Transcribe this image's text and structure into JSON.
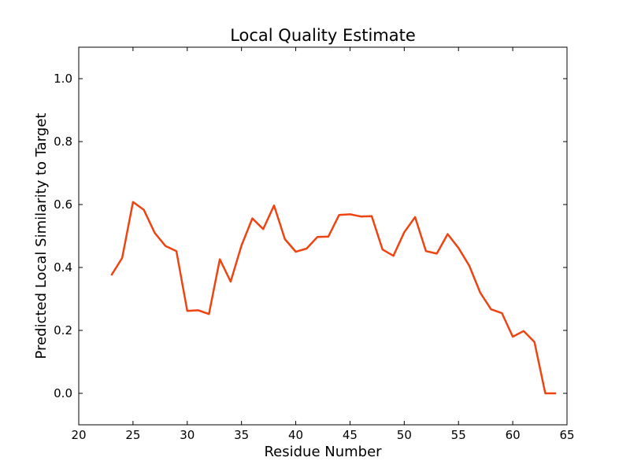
{
  "chart_data": {
    "type": "line",
    "title": "Local Quality Estimate",
    "xlabel": "Residue Number",
    "ylabel": "Predicted Local Similarity to Target",
    "xlim": [
      20,
      65
    ],
    "ylim": [
      -0.1,
      1.1
    ],
    "xticks": [
      "20",
      "25",
      "30",
      "35",
      "40",
      "45",
      "50",
      "55",
      "60",
      "65"
    ],
    "yticks": [
      "0.0",
      "0.2",
      "0.4",
      "0.6",
      "0.8",
      "1.0"
    ],
    "grid": false,
    "series": [
      {
        "color": "#ee4411",
        "x": [
          23,
          24,
          25,
          26,
          27,
          28,
          29,
          30,
          31,
          32,
          33,
          34,
          35,
          36,
          37,
          38,
          39,
          40,
          41,
          42,
          43,
          44,
          45,
          46,
          47,
          48,
          49,
          50,
          51,
          52,
          53,
          54,
          55,
          56,
          57,
          58,
          59,
          60,
          61,
          62,
          63,
          64
        ],
        "y": [
          0.375,
          0.43,
          0.608,
          0.583,
          0.51,
          0.468,
          0.452,
          0.262,
          0.264,
          0.252,
          0.426,
          0.355,
          0.47,
          0.556,
          0.522,
          0.597,
          0.49,
          0.45,
          0.46,
          0.497,
          0.498,
          0.567,
          0.569,
          0.562,
          0.563,
          0.457,
          0.437,
          0.512,
          0.56,
          0.452,
          0.444,
          0.506,
          0.462,
          0.405,
          0.32,
          0.267,
          0.255,
          0.18,
          0.198,
          0.163,
          0.0,
          0.0
        ]
      }
    ]
  }
}
